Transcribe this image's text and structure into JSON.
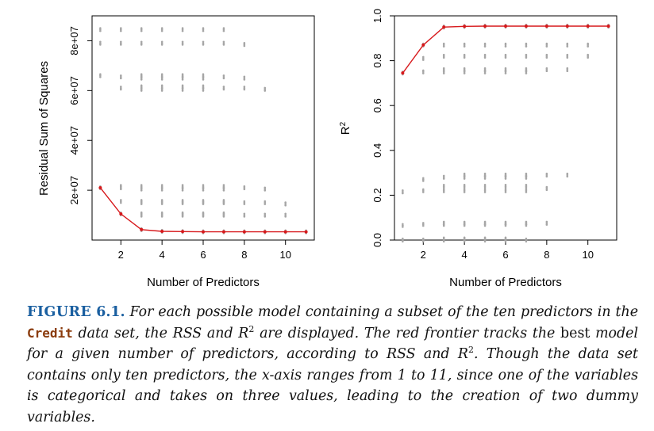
{
  "chart_data": [
    {
      "type": "scatter",
      "title": "",
      "xlabel": "Number of Predictors",
      "ylabel": "Residual Sum of Squares",
      "xlim": [
        0.6,
        11.4
      ],
      "ylim": [
        0,
        90000000
      ],
      "xticks": [
        2,
        4,
        6,
        8,
        10
      ],
      "xtick_labels": [
        "2",
        "4",
        "6",
        "8",
        "10"
      ],
      "yticks": [
        20000000,
        40000000,
        60000000,
        80000000
      ],
      "ytick_labels": [
        "2e+07",
        "4e+07",
        "6e+07",
        "8e+07"
      ],
      "point_color": "#a6a6a6",
      "frontier_color": "#d7191c",
      "points": [
        {
          "x": 1,
          "ys": [
            84500000,
            79000000,
            66000000,
            21000000
          ]
        },
        {
          "x": 2,
          "ys": [
            84500000,
            79000000,
            65500000,
            61000000,
            21500000,
            21000000,
            15500000,
            10500000
          ]
        },
        {
          "x": 3,
          "ys": [
            84500000,
            79000000,
            66000000,
            65000000,
            61500000,
            60500000,
            21500000,
            20500000,
            15500000,
            15000000,
            10500000,
            10000000,
            4200000
          ]
        },
        {
          "x": 4,
          "ys": [
            84500000,
            79000000,
            66000000,
            65000000,
            61500000,
            60500000,
            21500000,
            20500000,
            15500000,
            15000000,
            10500000,
            10000000,
            3500000
          ]
        },
        {
          "x": 5,
          "ys": [
            84500000,
            79000000,
            66000000,
            65000000,
            61500000,
            60500000,
            21500000,
            20500000,
            15500000,
            15000000,
            10500000,
            10000000,
            3400000
          ]
        },
        {
          "x": 6,
          "ys": [
            84500000,
            79000000,
            66000000,
            65000000,
            61500000,
            60500000,
            21500000,
            20500000,
            15500000,
            15000000,
            10500000,
            10000000,
            3300000
          ]
        },
        {
          "x": 7,
          "ys": [
            84500000,
            79000000,
            65500000,
            61000000,
            21500000,
            20500000,
            15500000,
            15000000,
            10500000,
            10000000,
            3300000
          ]
        },
        {
          "x": 8,
          "ys": [
            78500000,
            65000000,
            61000000,
            21000000,
            15000000,
            10000000,
            3300000
          ]
        },
        {
          "x": 9,
          "ys": [
            60500000,
            20500000,
            15000000,
            10000000,
            3300000
          ]
        },
        {
          "x": 10,
          "ys": [
            14500000,
            10000000,
            3300000
          ]
        },
        {
          "x": 11,
          "ys": [
            3300000
          ]
        }
      ],
      "frontier": {
        "x": [
          1,
          2,
          3,
          4,
          5,
          6,
          7,
          8,
          9,
          10,
          11
        ],
        "y": [
          21000000,
          10500000,
          4200000,
          3500000,
          3400000,
          3300000,
          3300000,
          3300000,
          3300000,
          3300000,
          3300000
        ]
      }
    },
    {
      "type": "scatter",
      "title": "",
      "xlabel": "Number of Predictors",
      "ylabel": "R2",
      "xlim": [
        0.6,
        11.4
      ],
      "ylim": [
        0,
        1
      ],
      "xticks": [
        2,
        4,
        6,
        8,
        10
      ],
      "xtick_labels": [
        "2",
        "4",
        "6",
        "8",
        "10"
      ],
      "yticks": [
        0,
        0.2,
        0.4,
        0.6,
        0.8,
        1.0
      ],
      "ytick_labels": [
        "0.0",
        "0.2",
        "0.4",
        "0.6",
        "0.8",
        "1.0"
      ],
      "point_color": "#a6a6a6",
      "frontier_color": "#d7191c",
      "points": [
        {
          "x": 1,
          "ys": [
            0.745,
            0.215,
            0.065,
            0.0
          ]
        },
        {
          "x": 2,
          "ys": [
            0.87,
            0.81,
            0.75,
            0.27,
            0.22,
            0.07,
            0.0
          ]
        },
        {
          "x": 3,
          "ys": [
            0.95,
            0.87,
            0.82,
            0.76,
            0.75,
            0.28,
            0.24,
            0.22,
            0.075,
            0.07,
            0.005,
            0.0
          ]
        },
        {
          "x": 4,
          "ys": [
            0.953,
            0.87,
            0.82,
            0.76,
            0.75,
            0.29,
            0.28,
            0.24,
            0.22,
            0.075,
            0.07,
            0.005,
            0.0
          ]
        },
        {
          "x": 5,
          "ys": [
            0.954,
            0.87,
            0.82,
            0.76,
            0.75,
            0.29,
            0.28,
            0.24,
            0.22,
            0.075,
            0.07,
            0.005,
            0.0
          ]
        },
        {
          "x": 6,
          "ys": [
            0.954,
            0.87,
            0.82,
            0.76,
            0.75,
            0.29,
            0.28,
            0.24,
            0.22,
            0.075,
            0.07,
            0.005,
            0.0
          ]
        },
        {
          "x": 7,
          "ys": [
            0.954,
            0.87,
            0.82,
            0.76,
            0.75,
            0.29,
            0.28,
            0.24,
            0.22,
            0.075,
            0.07,
            0.0
          ]
        },
        {
          "x": 8,
          "ys": [
            0.954,
            0.87,
            0.82,
            0.76,
            0.29,
            0.23,
            0.075
          ]
        },
        {
          "x": 9,
          "ys": [
            0.954,
            0.87,
            0.82,
            0.76,
            0.29
          ]
        },
        {
          "x": 10,
          "ys": [
            0.954,
            0.87,
            0.82
          ]
        },
        {
          "x": 11,
          "ys": [
            0.954
          ]
        }
      ],
      "frontier": {
        "x": [
          1,
          2,
          3,
          4,
          5,
          6,
          7,
          8,
          9,
          10,
          11
        ],
        "y": [
          0.745,
          0.87,
          0.95,
          0.953,
          0.954,
          0.954,
          0.954,
          0.954,
          0.954,
          0.954,
          0.954
        ]
      }
    }
  ],
  "caption": {
    "label": "FIGURE",
    "number": "6.1.",
    "part1": "For each possible model containing a subset of the ten predictors in the",
    "code": "Credit",
    "part2": "data set, the RSS and R",
    "sup1": "2",
    "part3": "are displayed. The red frontier tracks the",
    "upright": "best",
    "part4": "model for a given number of predictors, according to RSS and R",
    "sup2": "2",
    "part5": ". Though the data set contains only ten predictors, the x-axis ranges from 1 to 11, since one of the variables is categorical and takes on three values, leading to the creation of two dummy variables."
  }
}
